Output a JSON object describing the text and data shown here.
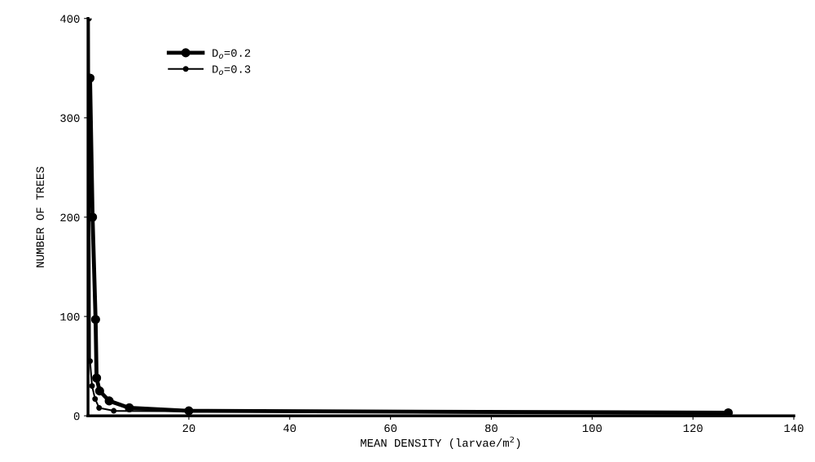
{
  "chart_data": {
    "type": "line",
    "xlabel": "MEAN DENSITY (larvae/m$^{2}$)",
    "ylabel": "NUMBER OF TREES",
    "xlim": [
      0,
      140
    ],
    "xticks": [
      20,
      40,
      60,
      80,
      100,
      120,
      140
    ],
    "ylim": [
      0,
      400
    ],
    "yticks": [
      0,
      100,
      200,
      300,
      400
    ],
    "marker": "circle",
    "legend": "top left",
    "grid": false,
    "series": [
      {
        "name": "D$_{o}$=0.2",
        "color": "#000000",
        "x": [
          0.4,
          0.9,
          1.5,
          1.7,
          2.3,
          4.2,
          8.2,
          20,
          127
        ],
        "values": [
          340,
          200,
          97,
          38,
          25,
          15,
          8,
          5,
          3
        ]
      },
      {
        "name": "D$_{o}$=0.3",
        "color": "#000000",
        "x": [
          0.2,
          0.4,
          0.8,
          1.4,
          2.2,
          5.1,
          127
        ],
        "values": [
          400,
          55,
          30,
          17,
          8,
          5,
          2
        ]
      }
    ]
  }
}
